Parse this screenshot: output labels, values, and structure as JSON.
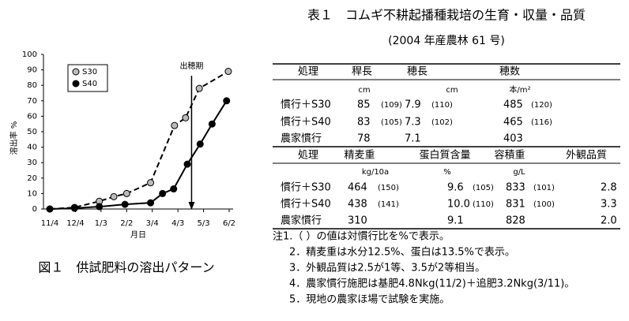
{
  "chart_data": {
    "type": "line",
    "caption": "図１　供試肥料の溶出パターン",
    "ylabel": "溶出率 %",
    "xlabel": "月日",
    "ylim": [
      0,
      100
    ],
    "yticks": [
      0,
      10,
      20,
      30,
      40,
      50,
      60,
      70,
      80,
      90,
      100
    ],
    "xlim": [
      0,
      210
    ],
    "xticks": [
      {
        "value": 0,
        "label": "11/4"
      },
      {
        "value": 30,
        "label": "12/4"
      },
      {
        "value": 60,
        "label": "1/3"
      },
      {
        "value": 90,
        "label": "2/2"
      },
      {
        "value": 120,
        "label": "3/4"
      },
      {
        "value": 150,
        "label": "4/3"
      },
      {
        "value": 180,
        "label": "5/3"
      },
      {
        "value": 210,
        "label": "6/2"
      }
    ],
    "annotation": {
      "text": "出穂期",
      "x": 166
    },
    "series": [
      {
        "name": "S30",
        "color": "#bbbbbb",
        "line": "dashed",
        "x": [
          0,
          29,
          58,
          75,
          90,
          118,
          146,
          159,
          175,
          209
        ],
        "values": [
          0,
          1,
          5,
          8,
          10,
          17,
          54,
          59,
          78,
          89
        ]
      },
      {
        "name": "S40",
        "color": "#000000",
        "line": "solid",
        "x": [
          0,
          29,
          58,
          88,
          118,
          132,
          145,
          161,
          176,
          190,
          207
        ],
        "values": [
          0,
          0.5,
          1.5,
          3,
          4,
          10,
          13,
          29,
          42,
          55,
          70
        ]
      }
    ]
  },
  "table_title": "表１　コムギ不耕起播種栽培の生育・収量・品質",
  "table_subtitle": "(2004 年産農林 61 号)",
  "table1": {
    "header": [
      "処理",
      "稈長",
      "穂長",
      "穂数"
    ],
    "units": [
      "cm",
      "cm",
      "本/m²"
    ],
    "rows": [
      [
        "慣行＋S30",
        [
          "85",
          "(109)"
        ],
        [
          "7.9",
          "(110)"
        ],
        [
          "485",
          "(120)"
        ]
      ],
      [
        "慣行＋S40",
        [
          "83",
          "(105)"
        ],
        [
          "7.3",
          "(102)"
        ],
        [
          "465",
          "(116)"
        ]
      ],
      [
        "農家慣行",
        [
          "78"
        ],
        [
          "7.1"
        ],
        [
          "403"
        ]
      ]
    ]
  },
  "table2": {
    "header": [
      "処理",
      "精麦重",
      "蛋白質含量",
      "容積重",
      "外観品質"
    ],
    "units": [
      "kg/10a",
      "%",
      "g/L"
    ],
    "rows": [
      [
        "慣行＋S30",
        [
          "464",
          "(150)"
        ],
        [
          "9.6",
          "(105)"
        ],
        [
          "833",
          "(101)"
        ],
        [
          "2.8"
        ]
      ],
      [
        "慣行＋S40",
        [
          "438",
          "(141)"
        ],
        [
          "10.0",
          "(110)"
        ],
        [
          "831",
          "(100)"
        ],
        [
          "3.3"
        ]
      ],
      [
        "農家慣行",
        [
          "310"
        ],
        [
          "9.1"
        ],
        [
          "828"
        ],
        [
          "2.0"
        ]
      ]
    ]
  },
  "notes": [
    "注1.（ ）の値は対慣行比を%で表示。",
    "2．精麦重は水分12.5%、蛋白は13.5%で表示。",
    "3．外観品質は2.5が1等、3.5が2等相当。",
    "4．農家慣行施肥は基肥4.8Nkg(11/2)＋追肥3.2Nkg(3/11)。",
    "5．現地の農家ほ場で試験を実施。"
  ]
}
